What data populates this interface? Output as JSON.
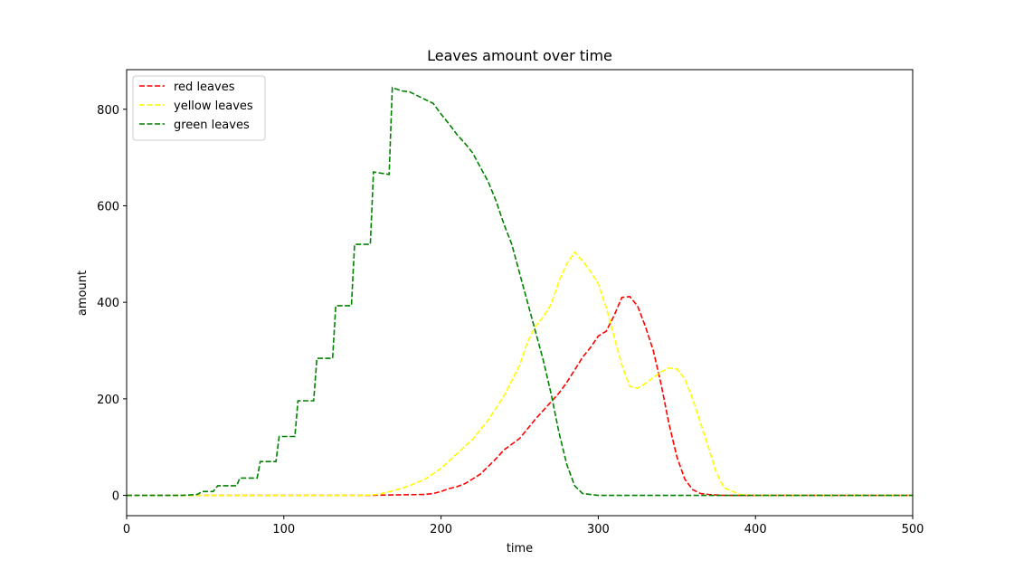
{
  "chart_data": {
    "type": "line",
    "title": "Leaves amount over time",
    "xlabel": "time",
    "ylabel": "amount",
    "xlim": [
      0,
      500
    ],
    "ylim": [
      -42,
      882
    ],
    "xticks": [
      0,
      100,
      200,
      300,
      400,
      500
    ],
    "yticks": [
      0,
      200,
      400,
      600,
      800
    ],
    "grid": false,
    "legend_position": "top-left",
    "series": [
      {
        "name": "red leaves",
        "color": "#ff0000",
        "points": [
          [
            0,
            0
          ],
          [
            150,
            0
          ],
          [
            190,
            2
          ],
          [
            195,
            4
          ],
          [
            200,
            8
          ],
          [
            205,
            14
          ],
          [
            210,
            18
          ],
          [
            215,
            24
          ],
          [
            220,
            34
          ],
          [
            225,
            44
          ],
          [
            230,
            60
          ],
          [
            235,
            76
          ],
          [
            240,
            94
          ],
          [
            245,
            106
          ],
          [
            250,
            118
          ],
          [
            255,
            138
          ],
          [
            260,
            158
          ],
          [
            265,
            176
          ],
          [
            270,
            194
          ],
          [
            275,
            212
          ],
          [
            280,
            234
          ],
          [
            285,
            260
          ],
          [
            290,
            286
          ],
          [
            295,
            306
          ],
          [
            300,
            330
          ],
          [
            305,
            340
          ],
          [
            310,
            372
          ],
          [
            315,
            410
          ],
          [
            320,
            412
          ],
          [
            325,
            392
          ],
          [
            330,
            350
          ],
          [
            335,
            300
          ],
          [
            340,
            230
          ],
          [
            345,
            148
          ],
          [
            350,
            80
          ],
          [
            355,
            34
          ],
          [
            360,
            12
          ],
          [
            365,
            4
          ],
          [
            370,
            2
          ],
          [
            380,
            0
          ],
          [
            500,
            0
          ]
        ]
      },
      {
        "name": "yellow leaves",
        "color": "#ffff00",
        "points": [
          [
            0,
            0
          ],
          [
            150,
            0
          ],
          [
            160,
            2
          ],
          [
            170,
            10
          ],
          [
            180,
            20
          ],
          [
            190,
            34
          ],
          [
            200,
            56
          ],
          [
            210,
            86
          ],
          [
            220,
            116
          ],
          [
            230,
            156
          ],
          [
            240,
            206
          ],
          [
            250,
            270
          ],
          [
            255,
            318
          ],
          [
            260,
            350
          ],
          [
            265,
            370
          ],
          [
            270,
            396
          ],
          [
            275,
            444
          ],
          [
            280,
            480
          ],
          [
            285,
            504
          ],
          [
            290,
            486
          ],
          [
            295,
            464
          ],
          [
            300,
            438
          ],
          [
            305,
            390
          ],
          [
            310,
            330
          ],
          [
            315,
            270
          ],
          [
            320,
            226
          ],
          [
            325,
            222
          ],
          [
            330,
            232
          ],
          [
            335,
            244
          ],
          [
            340,
            256
          ],
          [
            345,
            264
          ],
          [
            350,
            262
          ],
          [
            355,
            242
          ],
          [
            360,
            200
          ],
          [
            365,
            150
          ],
          [
            370,
            100
          ],
          [
            375,
            48
          ],
          [
            380,
            16
          ],
          [
            390,
            2
          ],
          [
            400,
            0
          ],
          [
            500,
            0
          ]
        ]
      },
      {
        "name": "green leaves",
        "color": "#008000",
        "points": [
          [
            0,
            0
          ],
          [
            35,
            0
          ],
          [
            45,
            2
          ],
          [
            48,
            8
          ],
          [
            55,
            8
          ],
          [
            58,
            20
          ],
          [
            70,
            20
          ],
          [
            72,
            36
          ],
          [
            83,
            36
          ],
          [
            85,
            70
          ],
          [
            95,
            70
          ],
          [
            97,
            122
          ],
          [
            107,
            122
          ],
          [
            109,
            196
          ],
          [
            119,
            196
          ],
          [
            121,
            284
          ],
          [
            131,
            284
          ],
          [
            133,
            393
          ],
          [
            143,
            393
          ],
          [
            145,
            520
          ],
          [
            155,
            520
          ],
          [
            157,
            670
          ],
          [
            167,
            665
          ],
          [
            169,
            845
          ],
          [
            175,
            838
          ],
          [
            180,
            836
          ],
          [
            190,
            820
          ],
          [
            195,
            812
          ],
          [
            200,
            790
          ],
          [
            205,
            770
          ],
          [
            210,
            748
          ],
          [
            215,
            730
          ],
          [
            220,
            710
          ],
          [
            225,
            680
          ],
          [
            230,
            650
          ],
          [
            235,
            610
          ],
          [
            240,
            562
          ],
          [
            245,
            520
          ],
          [
            250,
            460
          ],
          [
            255,
            400
          ],
          [
            260,
            340
          ],
          [
            265,
            280
          ],
          [
            270,
            210
          ],
          [
            275,
            130
          ],
          [
            280,
            64
          ],
          [
            285,
            20
          ],
          [
            290,
            4
          ],
          [
            300,
            0
          ],
          [
            500,
            0
          ]
        ]
      }
    ]
  }
}
